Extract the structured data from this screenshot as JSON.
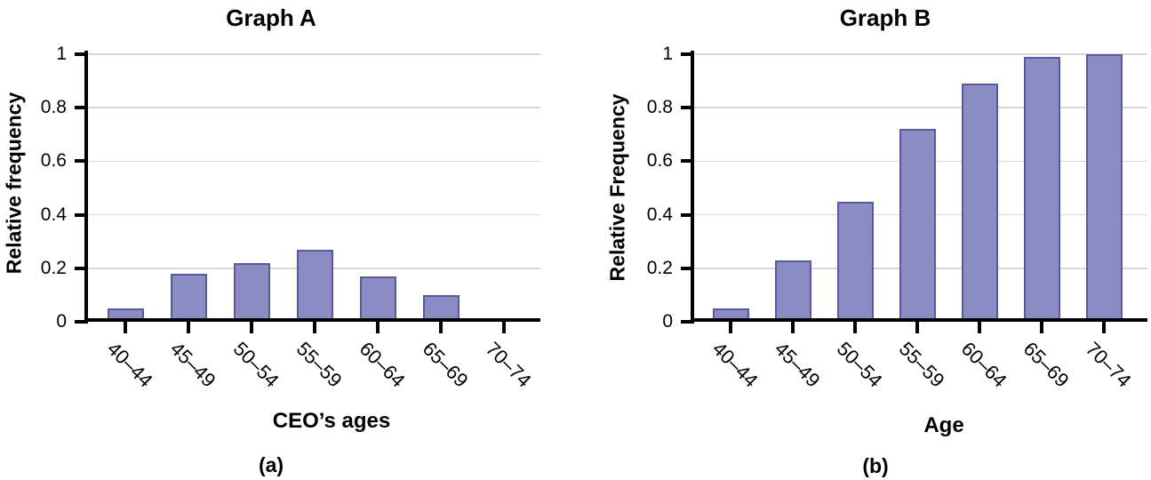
{
  "figure": {
    "background": "#ffffff"
  },
  "colors": {
    "bar_fill": "#8c8cc4",
    "bar_border": "#5a5a9b",
    "gridline": "#d9d9d9",
    "axis": "#000000",
    "text": "#000000"
  },
  "chart_data": [
    {
      "type": "bar",
      "title": "Graph A",
      "categories": [
        "40–44",
        "45–49",
        "50–54",
        "55–59",
        "60–64",
        "65–69",
        "70–74"
      ],
      "values": [
        0.05,
        0.18,
        0.22,
        0.27,
        0.17,
        0.1,
        0.01
      ],
      "xlabel": "CEO’s ages",
      "ylabel": "Relative frequency",
      "sublabel": "(a)",
      "ylim": [
        0,
        1
      ],
      "yticks": [
        0,
        0.2,
        0.4,
        0.6,
        0.8,
        1
      ],
      "ytick_labels": [
        "0",
        "0.2",
        "0.4",
        "0.6",
        "0.8",
        "1"
      ],
      "grid": true,
      "legend": "none"
    },
    {
      "type": "bar",
      "title": "Graph B",
      "categories": [
        "40–44",
        "45–49",
        "50–54",
        "55–59",
        "60–64",
        "65–69",
        "70–74"
      ],
      "values": [
        0.05,
        0.23,
        0.45,
        0.72,
        0.89,
        0.99,
        1.0
      ],
      "xlabel": "Age",
      "ylabel": "Relative Frequency",
      "sublabel": "(b)",
      "ylim": [
        0,
        1
      ],
      "yticks": [
        0,
        0.2,
        0.4,
        0.6,
        0.8,
        1
      ],
      "ytick_labels": [
        "0",
        "0.2",
        "0.4",
        "0.6",
        "0.8",
        "1"
      ],
      "grid": true,
      "legend": "none"
    }
  ]
}
